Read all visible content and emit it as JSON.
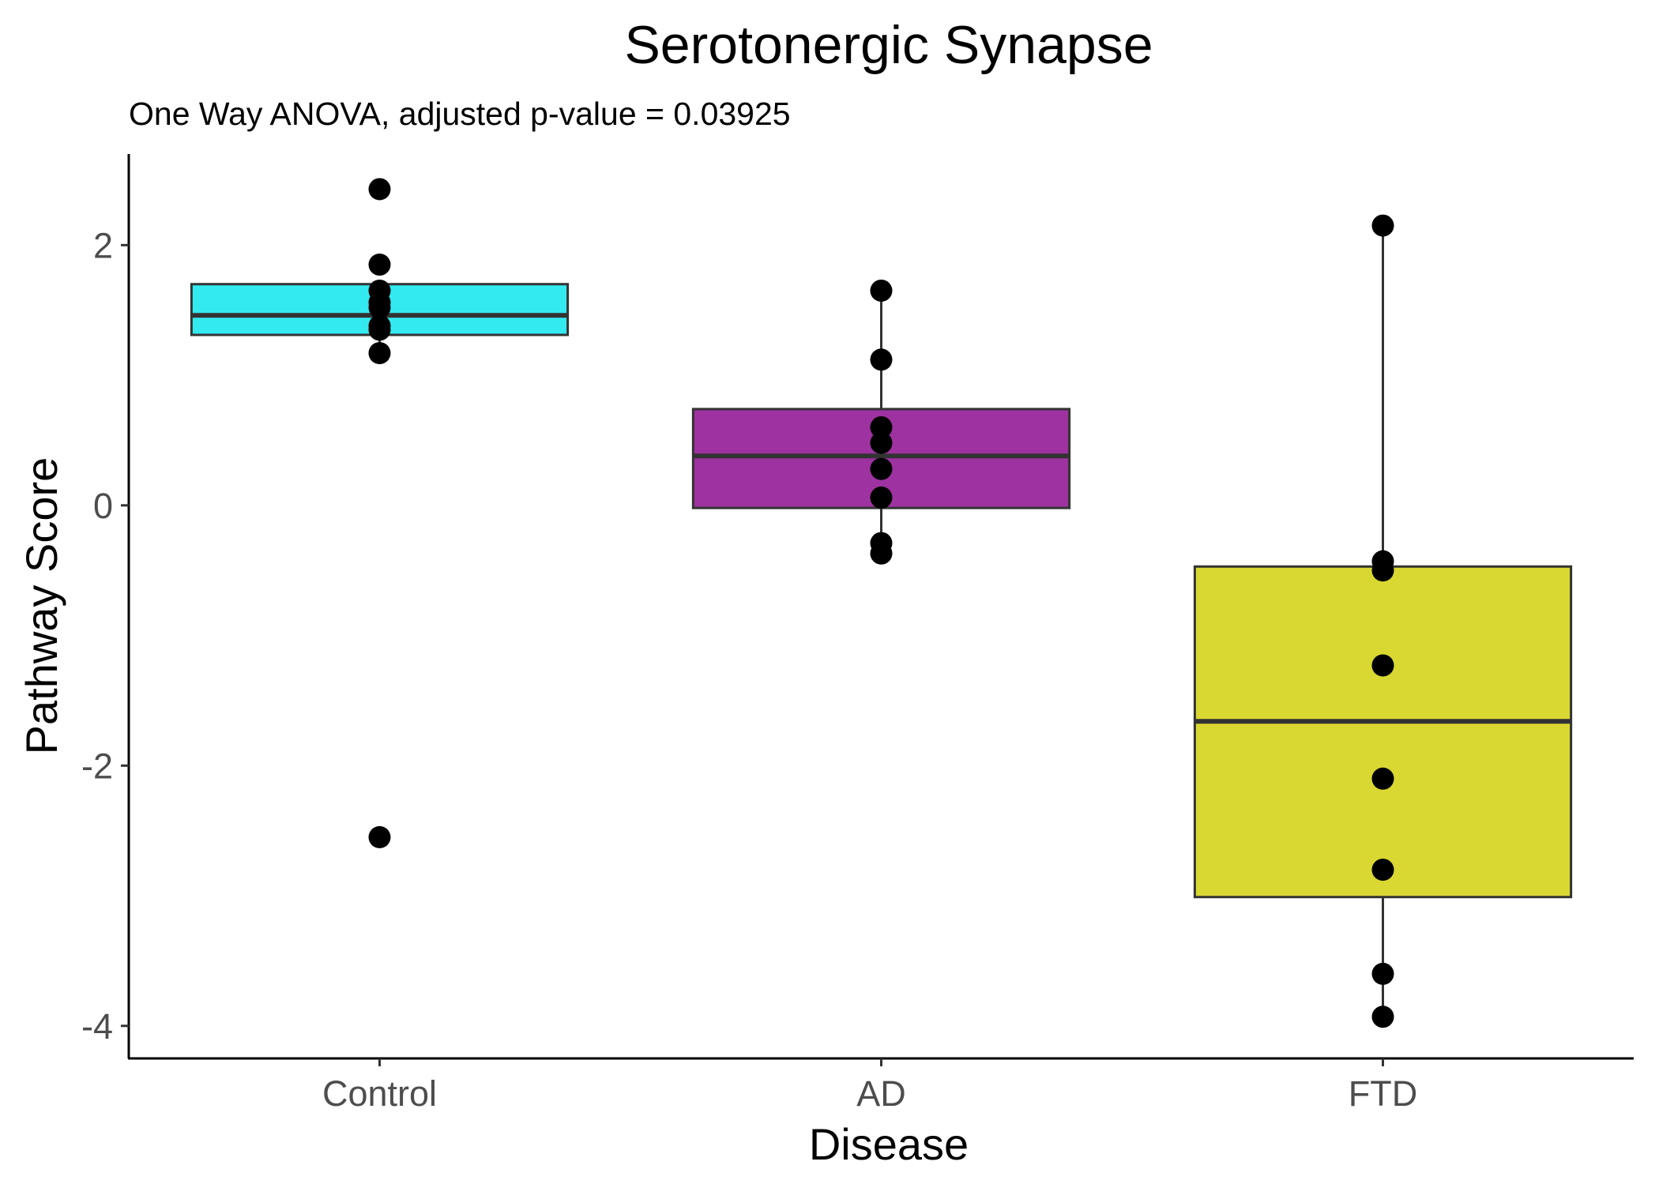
{
  "chart_data": {
    "type": "box",
    "title": "Serotonergic Synapse",
    "subtitle": "One Way ANOVA, adjusted p-value = 0.03925",
    "xlabel": "Disease",
    "ylabel": "Pathway Score",
    "ylim": [
      -4.25,
      2.7
    ],
    "yticks": [
      -4,
      -2,
      0,
      2
    ],
    "yticklabels": [
      "-4",
      "-2",
      "0",
      "2"
    ],
    "categories": [
      "Control",
      "AD",
      "FTD"
    ],
    "grid": false,
    "legend": "none",
    "boxes": [
      {
        "category": "Control",
        "color": "#33eaf0",
        "whisker_low": 1.17,
        "q1": 1.31,
        "median": 1.46,
        "q3": 1.7,
        "whisker_high": 1.7,
        "points": [
          2.43,
          1.85,
          1.65,
          1.56,
          1.52,
          1.38,
          1.35,
          1.17,
          -2.55
        ]
      },
      {
        "category": "AD",
        "color": "#9e32a0",
        "whisker_low": -0.37,
        "q1": -0.02,
        "median": 0.38,
        "q3": 0.74,
        "whisker_high": 1.65,
        "points": [
          1.65,
          1.12,
          0.6,
          0.48,
          0.28,
          0.06,
          -0.29,
          -0.37
        ]
      },
      {
        "category": "FTD",
        "color": "#d9d833",
        "whisker_low": -3.93,
        "q1": -3.01,
        "median": -1.66,
        "q3": -0.47,
        "whisker_high": 2.15,
        "points": [
          2.15,
          -0.43,
          -0.5,
          -1.23,
          -2.1,
          -2.8,
          -3.6,
          -3.93
        ]
      }
    ]
  }
}
